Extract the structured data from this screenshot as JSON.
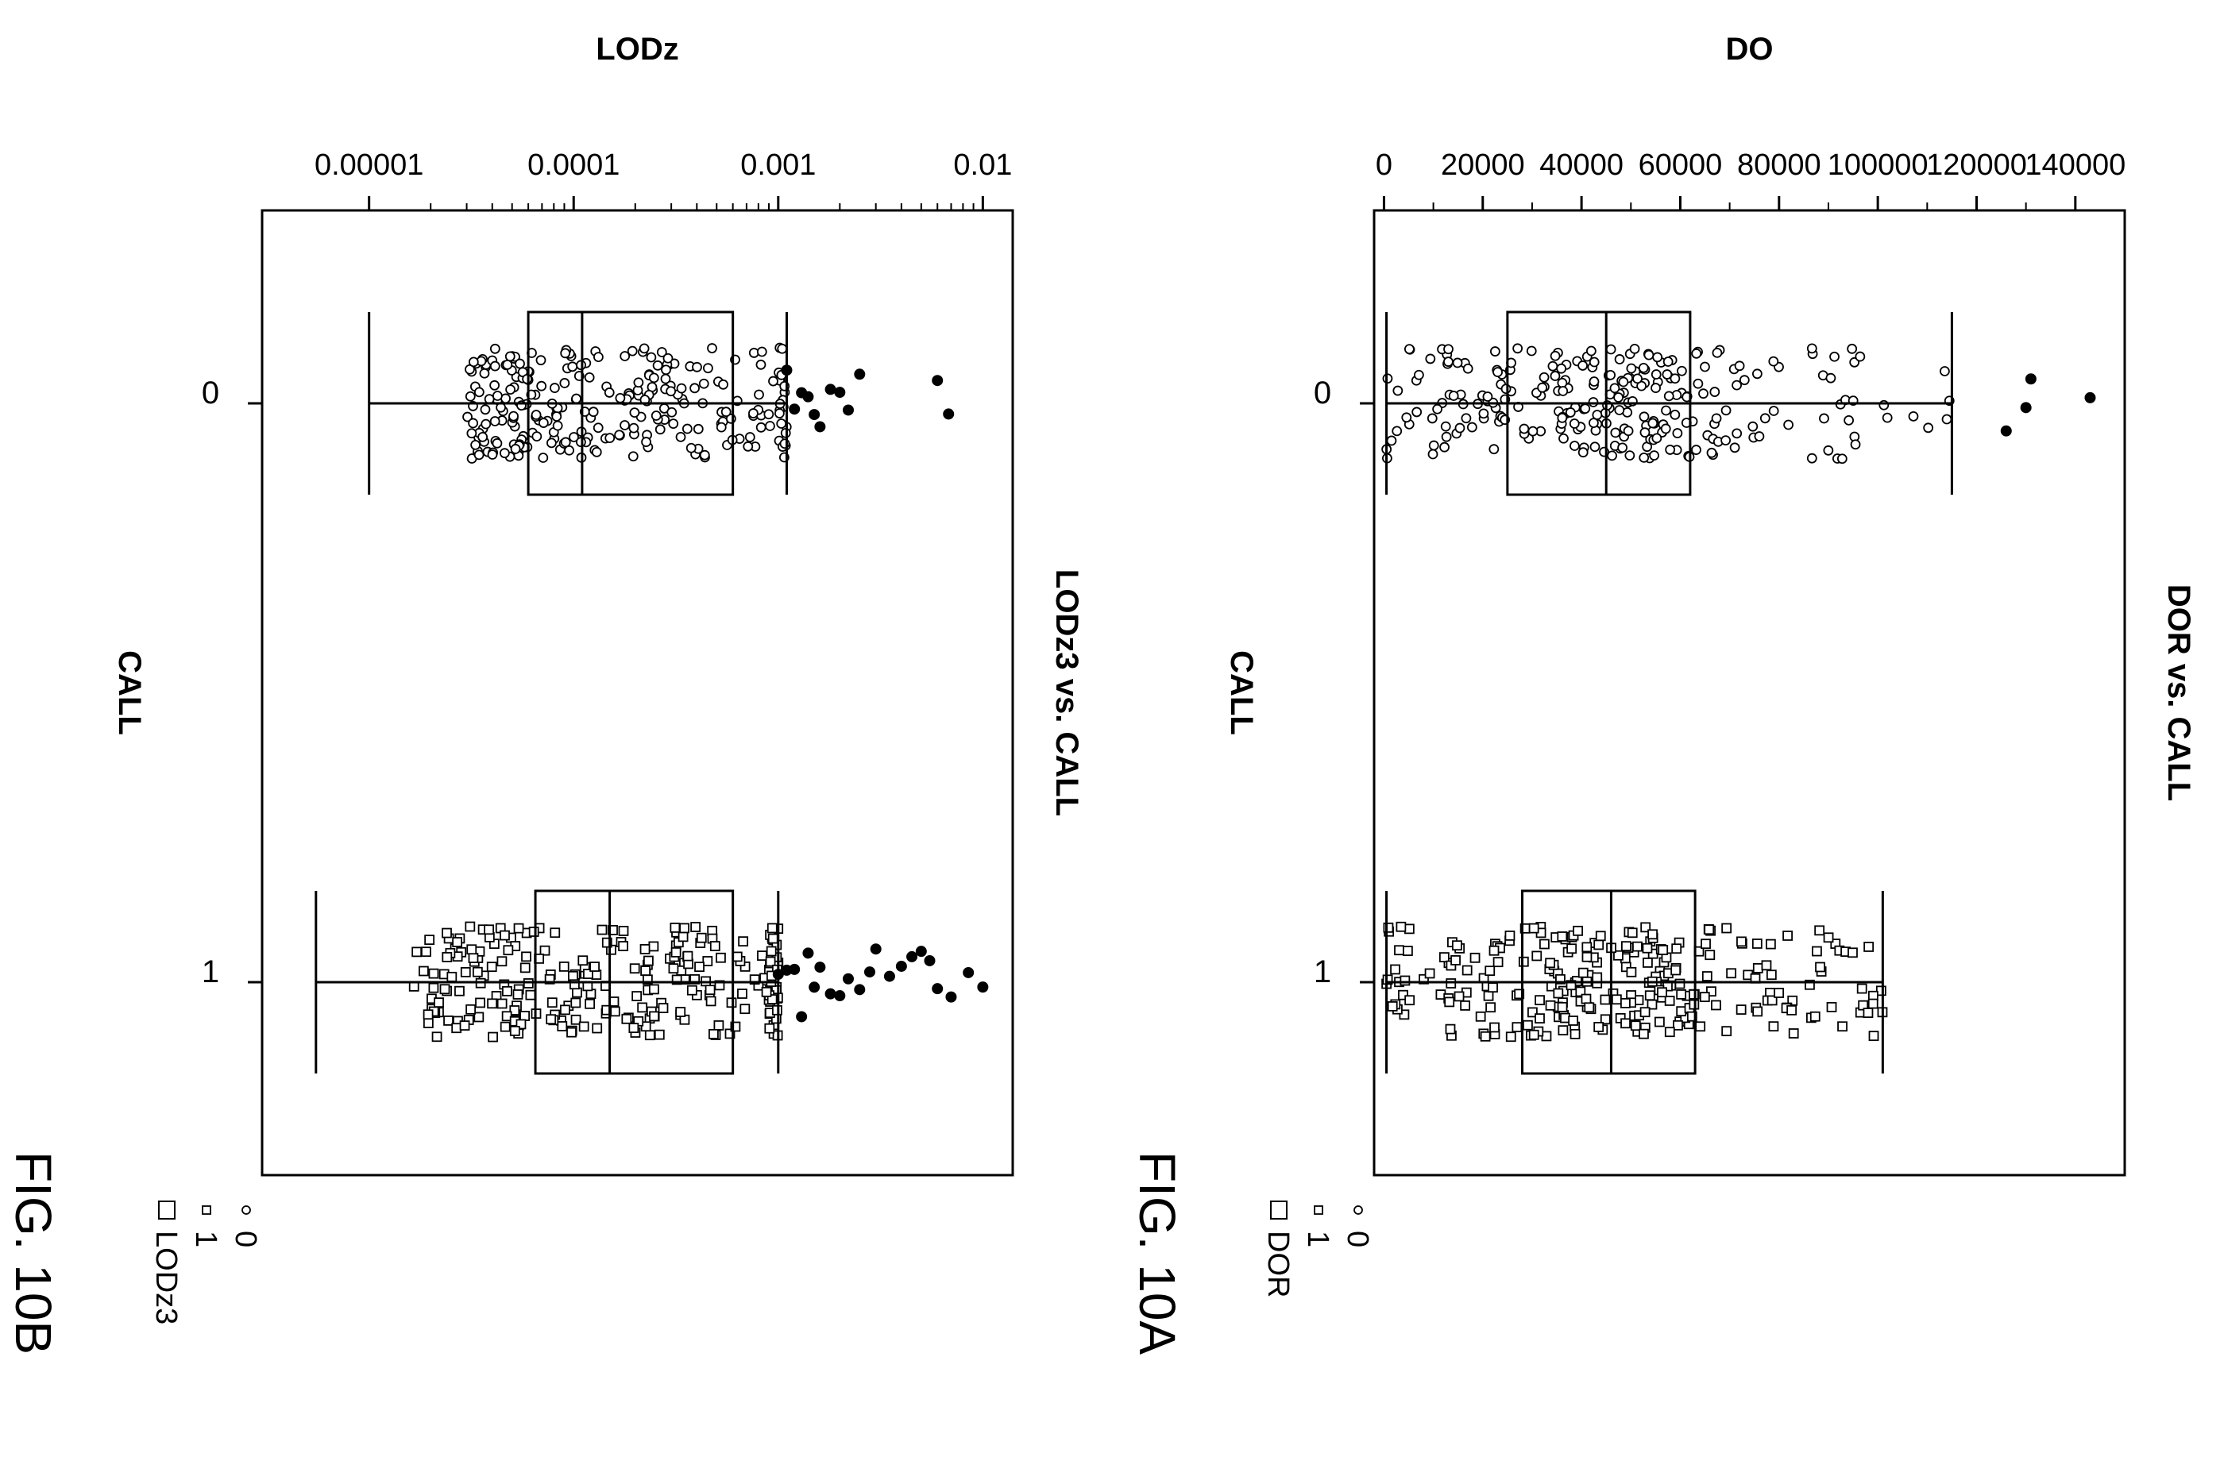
{
  "figures": [
    {
      "fig_label": "FIG. 10A",
      "chart_title": "DOR vs. CALL",
      "value_axis_label": "DO",
      "category_axis_label": "CALL",
      "ticks": [
        "0",
        "20000",
        "40000",
        "60000",
        "80000",
        "100000",
        "120000",
        "140000"
      ],
      "category_labels": [
        "0",
        "1"
      ],
      "legend": [
        "0",
        "1",
        "DOR"
      ]
    },
    {
      "fig_label": "FIG. 10B",
      "chart_title": "LODz3 vs. CALL",
      "value_axis_label": "LODz",
      "category_axis_label": "CALL",
      "ticks": [
        "0.00001",
        "0.0001",
        "0.001",
        "0.01"
      ],
      "category_labels": [
        "0",
        "1"
      ],
      "legend": [
        "0",
        "1",
        "LODz3"
      ]
    }
  ],
  "chart_data": [
    {
      "type": "box",
      "title": "DOR vs. CALL",
      "xlabel": "CALL",
      "ylabel": "DO",
      "categories": [
        "0",
        "1"
      ],
      "ylim": [
        -2000,
        150000
      ],
      "yscale": "linear",
      "orientation": "figure rotated 90 degrees clockwise",
      "grid": false,
      "legend_position": "bottom-right",
      "series": [
        {
          "name": "0",
          "marker": "open-circle"
        },
        {
          "name": "1",
          "marker": "open-square"
        }
      ],
      "boxes": [
        {
          "category": "0",
          "whisker_low": 500,
          "q1": 25000,
          "median": 45000,
          "q3": 62000,
          "whisker_high": 115000,
          "filled_points": [
            126000,
            130000,
            131000,
            143000
          ]
        },
        {
          "category": "1",
          "whisker_low": 500,
          "q1": 28000,
          "median": 46000,
          "q3": 63000,
          "whisker_high": 101000,
          "filled_points": []
        }
      ]
    },
    {
      "type": "box",
      "title": "LODz3 vs. CALL",
      "xlabel": "CALL",
      "ylabel": "LODz",
      "categories": [
        "0",
        "1"
      ],
      "ylim": [
        3e-06,
        0.014
      ],
      "yscale": "log",
      "orientation": "figure rotated 90 degrees clockwise",
      "grid": false,
      "legend_position": "bottom-right",
      "series": [
        {
          "name": "0",
          "marker": "open-circle"
        },
        {
          "name": "1",
          "marker": "open-square"
        }
      ],
      "boxes": [
        {
          "category": "0",
          "whisker_low": 1e-05,
          "q1": 6e-05,
          "median": 0.00011,
          "q3": 0.0006,
          "whisker_high": 0.0011,
          "filled_points": [
            0.0011,
            0.0012,
            0.0013,
            0.0014,
            0.0015,
            0.0016,
            0.0018,
            0.002,
            0.0022,
            0.0025,
            0.006,
            0.0068
          ]
        },
        {
          "category": "1",
          "whisker_low": 5.5e-06,
          "q1": 6.5e-05,
          "median": 0.00015,
          "q3": 0.0006,
          "whisker_high": 0.001,
          "filled_points": [
            0.001,
            0.0011,
            0.0012,
            0.0013,
            0.0014,
            0.0015,
            0.0016,
            0.0018,
            0.002,
            0.0022,
            0.0025,
            0.0028,
            0.003,
            0.0035,
            0.004,
            0.0045,
            0.005,
            0.0055,
            0.006,
            0.007,
            0.0085,
            0.01
          ]
        }
      ]
    }
  ]
}
